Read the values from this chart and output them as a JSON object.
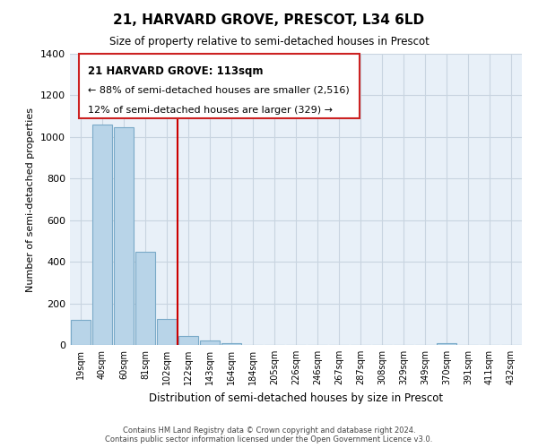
{
  "title": "21, HARVARD GROVE, PRESCOT, L34 6LD",
  "subtitle": "Size of property relative to semi-detached houses in Prescot",
  "xlabel": "Distribution of semi-detached houses by size in Prescot",
  "ylabel": "Number of semi-detached properties",
  "bin_labels": [
    "19sqm",
    "40sqm",
    "60sqm",
    "81sqm",
    "102sqm",
    "122sqm",
    "143sqm",
    "164sqm",
    "184sqm",
    "205sqm",
    "226sqm",
    "246sqm",
    "267sqm",
    "287sqm",
    "308sqm",
    "329sqm",
    "349sqm",
    "370sqm",
    "391sqm",
    "411sqm",
    "432sqm"
  ],
  "bar_heights": [
    120,
    1060,
    1045,
    450,
    125,
    45,
    20,
    10,
    0,
    0,
    0,
    0,
    0,
    0,
    0,
    0,
    0,
    10,
    0,
    0,
    0
  ],
  "bar_color": "#b8d4e8",
  "bar_edgecolor": "#7aaac8",
  "vline_x_index": 4,
  "vline_color": "#cc0000",
  "ylim": [
    0,
    1400
  ],
  "yticks": [
    0,
    200,
    400,
    600,
    800,
    1000,
    1200,
    1400
  ],
  "annotation_title": "21 HARVARD GROVE: 113sqm",
  "annotation_line1": "← 88% of semi-detached houses are smaller (2,516)",
  "annotation_line2": "12% of semi-detached houses are larger (329) →",
  "footer_line1": "Contains HM Land Registry data © Crown copyright and database right 2024.",
  "footer_line2": "Contains public sector information licensed under the Open Government Licence v3.0.",
  "background_color": "#ffffff",
  "plot_bg_color": "#e8f0f8",
  "grid_color": "#c8d4e0"
}
